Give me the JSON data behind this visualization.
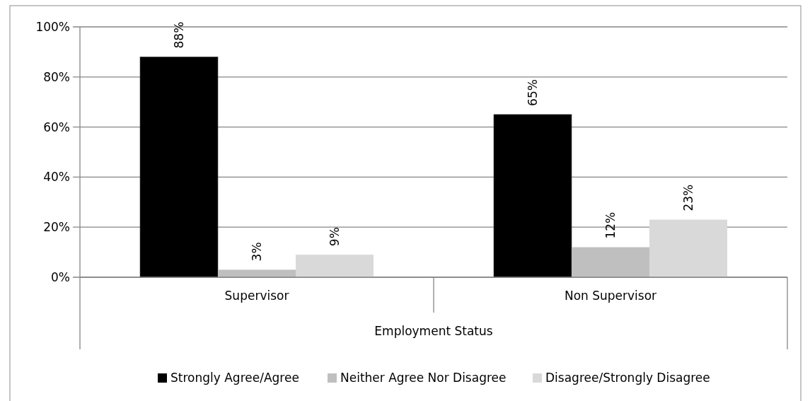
{
  "chart_data": {
    "type": "bar",
    "xlabel": "Employment Status",
    "categories": [
      "Supervisor",
      "Non Supervisor"
    ],
    "series": [
      {
        "name": "Strongly Agree/Agree",
        "color": "#000000",
        "values": [
          88,
          65
        ]
      },
      {
        "name": "Neither Agree Nor Disagree",
        "color": "#bfbfbf",
        "values": [
          3,
          12
        ]
      },
      {
        "name": "Disagree/Strongly Disagree",
        "color": "#d9d9d9",
        "values": [
          9,
          23
        ]
      }
    ],
    "value_labels": [
      [
        "88%",
        "65%"
      ],
      [
        "3%",
        "12%"
      ],
      [
        "9%",
        "23%"
      ]
    ],
    "ylim": [
      0,
      100
    ],
    "yticks": [
      {
        "value": 0,
        "label": "0%"
      },
      {
        "value": 20,
        "label": "20%"
      },
      {
        "value": 40,
        "label": "40%"
      },
      {
        "value": 60,
        "label": "60%"
      },
      {
        "value": 80,
        "label": "80%"
      },
      {
        "value": 100,
        "label": "100%"
      }
    ],
    "grid": "y",
    "legend": "bottom"
  }
}
